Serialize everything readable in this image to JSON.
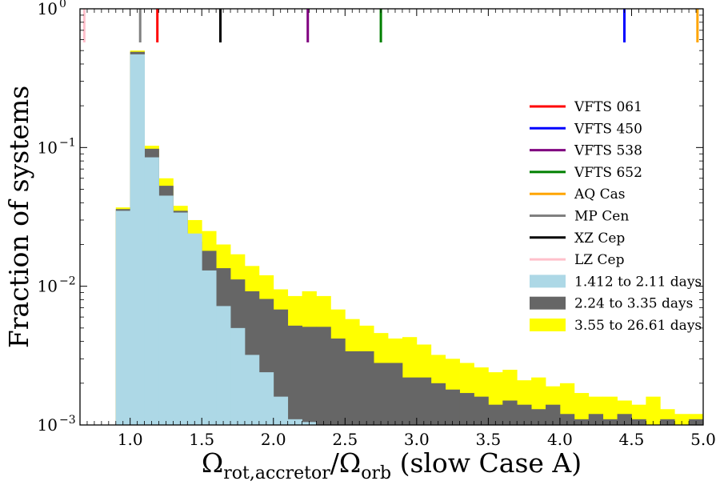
{
  "chart_data": {
    "type": "bar",
    "subtype": "stacked-histogram",
    "title": "",
    "xlabel": {
      "main": "Ω",
      "sub1": "rot,accretor",
      "slash": "/Ω",
      "sub2": "orb",
      "suffix": " (slow Case A)"
    },
    "ylabel": "Fraction of systems",
    "xlim": [
      0.65,
      5.0
    ],
    "ylim": [
      0.001,
      1.0
    ],
    "yscale": "log",
    "xticks": [
      1.0,
      1.5,
      2.0,
      2.5,
      3.0,
      3.5,
      4.0,
      4.5,
      5.0
    ],
    "xtick_labels": [
      "1.0",
      "1.5",
      "2.0",
      "2.5",
      "3.0",
      "3.5",
      "4.0",
      "4.5",
      "5.0"
    ],
    "yticks": [
      0.001,
      0.01,
      0.1,
      1.0
    ],
    "ytick_labels": [
      {
        "base": "10",
        "exp": "−3"
      },
      {
        "base": "10",
        "exp": "−2"
      },
      {
        "base": "10",
        "exp": "−1"
      },
      {
        "base": "10",
        "exp": "0"
      }
    ],
    "grid": false,
    "legend_position": "right",
    "bin_edges": [
      0.9,
      1.0,
      1.1,
      1.2,
      1.3,
      1.4,
      1.5,
      1.6,
      1.7,
      1.8,
      1.9,
      2.0,
      2.1,
      2.2,
      2.3,
      2.4,
      2.5,
      2.6,
      2.7,
      2.8,
      2.9,
      3.0,
      3.1,
      3.2,
      3.3,
      3.4,
      3.5,
      3.6,
      3.7,
      3.8,
      3.9,
      4.0,
      4.1,
      4.2,
      4.3,
      4.4,
      4.5,
      4.6,
      4.7,
      4.8,
      4.9,
      5.0
    ],
    "series": [
      {
        "name": "1.412 to 2.11 days",
        "color": "#add8e6",
        "values": [
          0.035,
          0.47,
          0.085,
          0.045,
          0.034,
          0.024,
          0.013,
          0.0072,
          0.005,
          0.0032,
          0.0024,
          0.0016,
          0.0011,
          0.00105,
          0,
          0,
          0,
          0,
          0,
          0,
          0,
          0,
          0,
          0,
          0,
          0,
          0,
          0,
          0,
          0,
          0,
          0,
          0,
          0,
          0,
          0,
          0,
          0,
          0,
          0,
          0
        ]
      },
      {
        "name": "2.24 to 3.35 days",
        "color": "#666666",
        "values": [
          0.036,
          0.49,
          0.098,
          0.053,
          0.035,
          0.021,
          0.018,
          0.0135,
          0.0112,
          0.0092,
          0.0081,
          0.0068,
          0.0052,
          0.0051,
          0.0051,
          0.0042,
          0.0034,
          0.0034,
          0.0028,
          0.0028,
          0.0022,
          0.0022,
          0.002,
          0.0018,
          0.0017,
          0.0016,
          0.0014,
          0.0015,
          0.0014,
          0.0013,
          0.0014,
          0.0012,
          0.0011,
          0.0012,
          0.0011,
          0.0012,
          0.0011,
          0.001,
          0.0011,
          0.001,
          0.0011
        ]
      },
      {
        "name": "3.55 to 26.61 days",
        "color": "#ffff00",
        "values": [
          0.037,
          0.5,
          0.103,
          0.06,
          0.038,
          0.03,
          0.025,
          0.02,
          0.017,
          0.014,
          0.012,
          0.0095,
          0.0085,
          0.0092,
          0.0085,
          0.0068,
          0.0058,
          0.0052,
          0.0046,
          0.0042,
          0.0043,
          0.0038,
          0.0032,
          0.003,
          0.0028,
          0.0026,
          0.0024,
          0.0025,
          0.0021,
          0.0022,
          0.0019,
          0.002,
          0.0017,
          0.0016,
          0.0016,
          0.0015,
          0.0014,
          0.0016,
          0.0013,
          0.0012,
          0.0012
        ]
      }
    ],
    "markers": [
      {
        "name": "VFTS 061",
        "x": 1.19,
        "color": "#ff0000"
      },
      {
        "name": "VFTS 450",
        "x": 4.45,
        "color": "#0000ff"
      },
      {
        "name": "VFTS 538",
        "x": 2.24,
        "color": "#800080"
      },
      {
        "name": "VFTS 652",
        "x": 2.75,
        "color": "#008000"
      },
      {
        "name": "AQ Cas",
        "x": 4.96,
        "color": "#ffa500"
      },
      {
        "name": "MP Cen",
        "x": 1.07,
        "color": "#808080"
      },
      {
        "name": "XZ Cep",
        "x": 1.63,
        "color": "#000000"
      },
      {
        "name": "LZ Cep",
        "x": 0.68,
        "color": "#ffc0cb"
      }
    ]
  }
}
